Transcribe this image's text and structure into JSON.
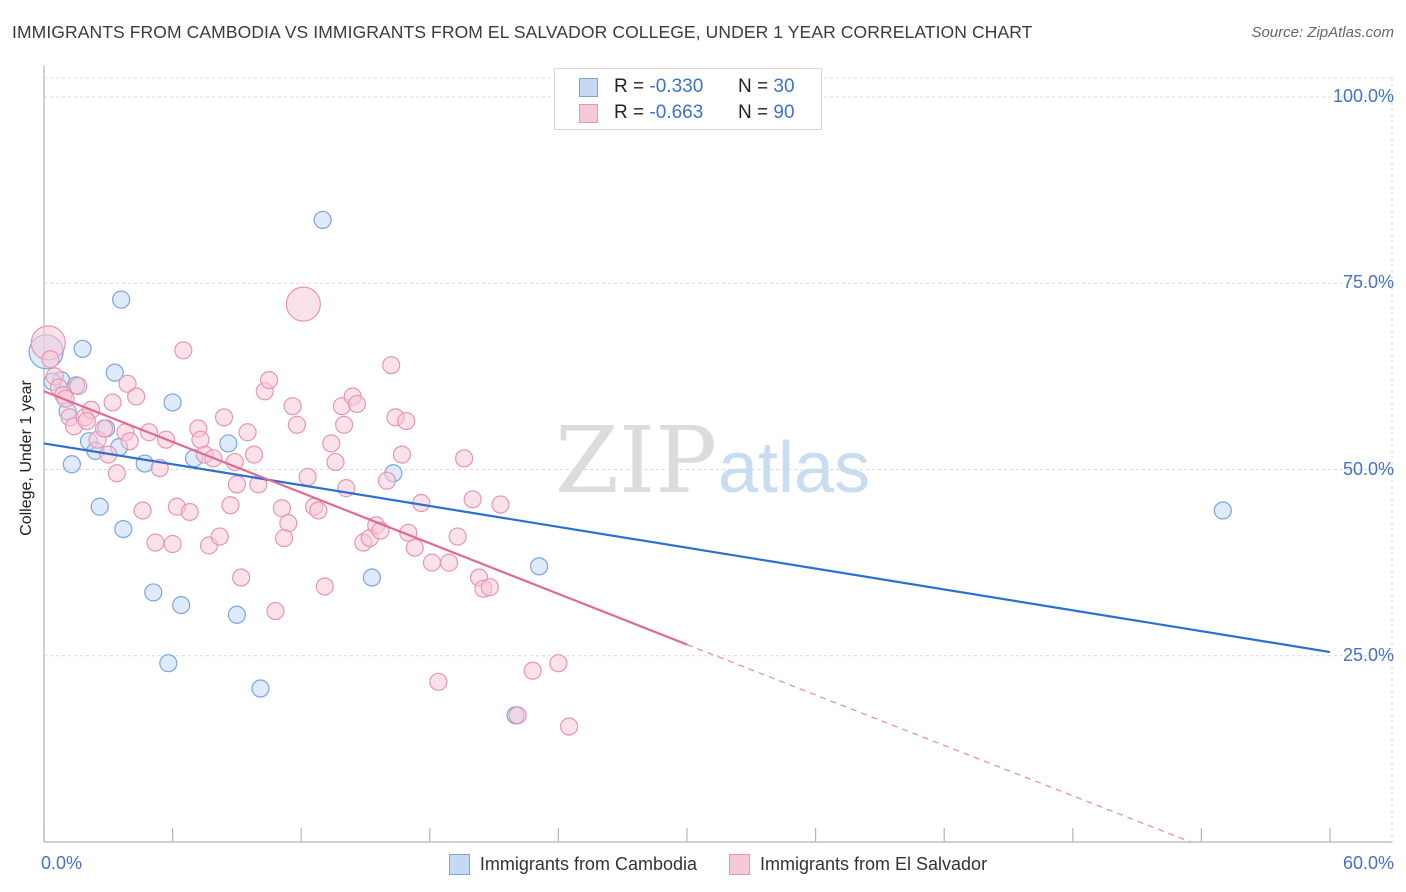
{
  "chart_data": {
    "type": "scatter",
    "title": "IMMIGRANTS FROM CAMBODIA VS IMMIGRANTS FROM EL SALVADOR COLLEGE, UNDER 1 YEAR CORRELATION CHART",
    "source": "Source: ZipAtlas.com",
    "ylabel": "College, Under 1 year",
    "xlabel": "",
    "xlim": [
      0,
      60
    ],
    "ylim": [
      0,
      105
    ],
    "x_tick_labels": {
      "min": "0.0%",
      "max": "60.0%"
    },
    "y_ticks": [
      {
        "value": 100,
        "label": "100.0%"
      },
      {
        "value": 75,
        "label": "75.0%"
      },
      {
        "value": 50,
        "label": "50.0%"
      },
      {
        "value": 25,
        "label": "25.0%"
      }
    ],
    "watermark": {
      "zip": "ZIP",
      "atlas": "atlas"
    },
    "legend_top": [
      {
        "r_label": "R =",
        "r_value": "-0.330",
        "n_label": "N =",
        "n_value": "30"
      },
      {
        "r_label": "R =",
        "r_value": "-0.663",
        "n_label": "N =",
        "n_value": "90"
      }
    ],
    "series": [
      {
        "name": "Immigrants from Cambodia",
        "color": "#7aa6e0",
        "fill": "#c5d9f5",
        "line_color": "#2b6fd0",
        "trend": {
          "x0": 0,
          "y0": 53.5,
          "x1": 60,
          "y1": 25.5
        },
        "points": [
          [
            0.1,
            65.8
          ],
          [
            0.8,
            62.0
          ],
          [
            1.1,
            57.8
          ],
          [
            1.3,
            50.7
          ],
          [
            1.5,
            61.3
          ],
          [
            1.8,
            66.2
          ],
          [
            2.1,
            53.8
          ],
          [
            2.4,
            52.5
          ],
          [
            2.6,
            45.0
          ],
          [
            2.9,
            55.5
          ],
          [
            3.3,
            63.0
          ],
          [
            3.6,
            72.8
          ],
          [
            3.7,
            42.0
          ],
          [
            4.7,
            50.8
          ],
          [
            5.1,
            33.5
          ],
          [
            5.8,
            24.0
          ],
          [
            6.0,
            59.0
          ],
          [
            6.4,
            31.8
          ],
          [
            7.0,
            51.5
          ],
          [
            8.6,
            53.5
          ],
          [
            9.0,
            30.5
          ],
          [
            10.1,
            20.6
          ],
          [
            13.0,
            83.5
          ],
          [
            15.3,
            35.5
          ],
          [
            16.3,
            49.5
          ],
          [
            22.0,
            17.0
          ],
          [
            23.1,
            37.0
          ],
          [
            55.0,
            44.5
          ],
          [
            0.4,
            61.8
          ],
          [
            3.5,
            53.0
          ]
        ]
      },
      {
        "name": "Immigrants from El Salvador",
        "color": "#e896b0",
        "fill": "#f7c9d8",
        "line_color": "#e06a93",
        "trend": {
          "x0": 0,
          "y0": 60.5,
          "x1": 30,
          "y1": 26.5
        },
        "trend_dashed": {
          "x0": 30,
          "y0": 26.5,
          "x1": 53.5,
          "y1": 0
        },
        "points": [
          [
            0.2,
            67.0
          ],
          [
            0.3,
            64.8
          ],
          [
            0.5,
            62.5
          ],
          [
            0.7,
            61.0
          ],
          [
            0.9,
            60.0
          ],
          [
            1.0,
            59.5
          ],
          [
            1.2,
            57.0
          ],
          [
            1.4,
            55.8
          ],
          [
            1.6,
            61.2
          ],
          [
            1.9,
            57.0
          ],
          [
            2.2,
            58.0
          ],
          [
            2.5,
            54.0
          ],
          [
            2.8,
            55.5
          ],
          [
            3.0,
            52.0
          ],
          [
            3.4,
            49.5
          ],
          [
            3.8,
            55.0
          ],
          [
            3.9,
            61.5
          ],
          [
            4.0,
            53.8
          ],
          [
            4.3,
            59.8
          ],
          [
            4.6,
            44.5
          ],
          [
            4.9,
            55.0
          ],
          [
            5.2,
            40.2
          ],
          [
            5.4,
            50.2
          ],
          [
            5.7,
            54.0
          ],
          [
            6.2,
            45.0
          ],
          [
            6.5,
            66.0
          ],
          [
            6.8,
            44.3
          ],
          [
            7.2,
            55.5
          ],
          [
            7.5,
            52.0
          ],
          [
            7.7,
            39.8
          ],
          [
            7.9,
            51.5
          ],
          [
            8.2,
            41.0
          ],
          [
            8.4,
            57.0
          ],
          [
            8.7,
            45.2
          ],
          [
            8.9,
            51.0
          ],
          [
            9.2,
            35.5
          ],
          [
            9.5,
            55.0
          ],
          [
            9.8,
            52.0
          ],
          [
            10.0,
            48.0
          ],
          [
            10.3,
            60.5
          ],
          [
            10.5,
            62.0
          ],
          [
            10.8,
            31.0
          ],
          [
            11.1,
            44.8
          ],
          [
            11.4,
            42.8
          ],
          [
            11.6,
            58.5
          ],
          [
            11.8,
            56.0
          ],
          [
            12.1,
            72.2
          ],
          [
            12.3,
            49.0
          ],
          [
            12.6,
            45.0
          ],
          [
            12.8,
            44.5
          ],
          [
            13.1,
            34.3
          ],
          [
            13.4,
            53.5
          ],
          [
            13.6,
            51.0
          ],
          [
            13.9,
            58.5
          ],
          [
            14.1,
            47.5
          ],
          [
            14.4,
            59.8
          ],
          [
            14.6,
            58.8
          ],
          [
            14.9,
            40.2
          ],
          [
            15.2,
            40.8
          ],
          [
            15.5,
            42.5
          ],
          [
            15.7,
            41.8
          ],
          [
            16.0,
            48.5
          ],
          [
            16.2,
            64.0
          ],
          [
            16.4,
            57.0
          ],
          [
            16.7,
            52.0
          ],
          [
            17.0,
            41.5
          ],
          [
            17.3,
            39.5
          ],
          [
            17.6,
            45.5
          ],
          [
            18.1,
            37.5
          ],
          [
            18.4,
            21.5
          ],
          [
            18.9,
            37.5
          ],
          [
            19.3,
            41.0
          ],
          [
            19.6,
            51.5
          ],
          [
            20.0,
            46.0
          ],
          [
            20.3,
            35.5
          ],
          [
            20.5,
            34.0
          ],
          [
            20.8,
            34.2
          ],
          [
            21.3,
            45.3
          ],
          [
            22.1,
            17.0
          ],
          [
            22.8,
            23.0
          ],
          [
            24.0,
            24.0
          ],
          [
            24.5,
            15.5
          ],
          [
            6.0,
            40.0
          ],
          [
            3.2,
            59.0
          ],
          [
            2.0,
            56.5
          ],
          [
            9.0,
            48.0
          ],
          [
            11.2,
            40.8
          ],
          [
            14.0,
            56.0
          ],
          [
            7.3,
            54.0
          ],
          [
            16.9,
            56.5
          ]
        ]
      }
    ]
  }
}
